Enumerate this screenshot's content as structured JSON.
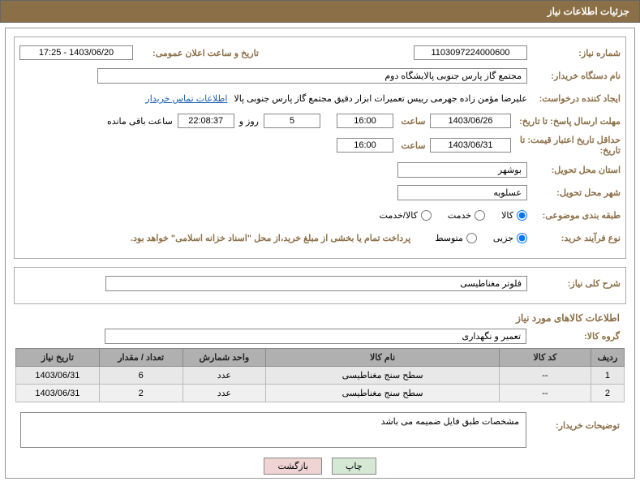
{
  "header": {
    "title": "جزئیات اطلاعات نیاز"
  },
  "fields": {
    "need_number_label": "شماره نیاز:",
    "need_number": "1103097224000600",
    "announce_label": "تاریخ و ساعت اعلان عمومی:",
    "announce_value": "1403/06/20 - 17:25",
    "buyer_org_label": "نام دستگاه خریدار:",
    "buyer_org": "مجتمع گاز پارس جنوبی  پالایشگاه دوم",
    "requester_label": "ایجاد کننده درخواست:",
    "requester": "علیرضا مؤمن زاده جهرمی رییس تعمیرات ابزار دقیق مجتمع گاز پارس جنوبی  پالا",
    "contact_link": "اطلاعات تماس خریدار",
    "deadline_label": "مهلت ارسال پاسخ: تا تاریخ:",
    "deadline_date": "1403/06/26",
    "time_label": "ساعت",
    "deadline_time": "16:00",
    "days_remaining": "5",
    "days_label": "روز و",
    "countdown": "22:08:37",
    "remaining_label": "ساعت باقی مانده",
    "validity_label": "حداقل تاریخ اعتبار قیمت: تا تاریخ:",
    "validity_date": "1403/06/31",
    "validity_time": "16:00",
    "province_label": "استان محل تحویل:",
    "province": "بوشهر",
    "city_label": "شهر محل تحویل:",
    "city": "عسلویه",
    "category_label": "طبقه بندی موضوعی:",
    "cat_goods": "کالا",
    "cat_service": "خدمت",
    "cat_goods_service": "کالا/خدمت",
    "process_label": "نوع فرآیند خرید:",
    "proc_small": "جزیی",
    "proc_medium": "متوسط",
    "payment_note": "پرداخت تمام یا بخشی از مبلغ خرید،از محل \"اسناد خزانه اسلامی\" خواهد بود.",
    "summary_label": "شرح کلی نیاز:",
    "summary_value": "فلوتر مغناطیسی",
    "items_title": "اطلاعات کالاهای مورد نیاز",
    "group_label": "گروه کالا:",
    "group_value": "تعمیر و نگهداری",
    "buyer_desc_label": "توضیحات خریدار:",
    "buyer_desc": "مشخصات طبق فایل ضمیمه می باشد"
  },
  "table": {
    "headers": {
      "row": "ردیف",
      "code": "کد کالا",
      "name": "نام کالا",
      "unit": "واحد شمارش",
      "qty": "تعداد / مقدار",
      "date": "تاریخ نیاز"
    },
    "rows": [
      {
        "n": "1",
        "code": "--",
        "name": "سطح سنج مغناطیسی",
        "unit": "عدد",
        "qty": "6",
        "date": "1403/06/31"
      },
      {
        "n": "2",
        "code": "--",
        "name": "سطح سنج مغناطیسی",
        "unit": "عدد",
        "qty": "2",
        "date": "1403/06/31"
      }
    ]
  },
  "buttons": {
    "print": "چاپ",
    "back": "بازگشت"
  },
  "colors": {
    "header_bg": "#8b6f47",
    "label_color": "#8b6f47",
    "th_bg": "#b0b0b0",
    "td_bg": "#e8e8e8",
    "link": "#1a5fb4",
    "btn_print": "#d4e8d4",
    "btn_back": "#f0d4d4"
  }
}
